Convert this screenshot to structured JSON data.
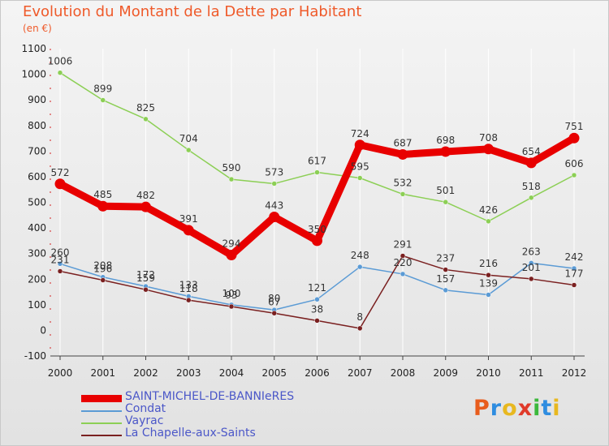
{
  "title": "Evolution du Montant de la Dette par Habitant",
  "subtitle": "(en €)",
  "logo": {
    "text": "Proxiti",
    "letter_colors": [
      "#e85c1c",
      "#2f8de0",
      "#e8b820",
      "#e03a2a",
      "#3cb83c",
      "#2f8de0",
      "#e8b820"
    ]
  },
  "chart_data": {
    "type": "line",
    "title": "Evolution du Montant de la Dette par Habitant",
    "subtitle": "(en €)",
    "xlabel": "",
    "ylabel": "",
    "x": [
      "2000",
      "2001",
      "2002",
      "2003",
      "2004",
      "2005",
      "2006",
      "2007",
      "2008",
      "2009",
      "2010",
      "2011",
      "2012"
    ],
    "ylim": [
      -100,
      1100
    ],
    "yticks": [
      "-100",
      "0",
      "100",
      "200",
      "300",
      "400",
      "500",
      "600",
      "700",
      "800",
      "900",
      "1000",
      "1100"
    ],
    "grid": "vertical",
    "legend_position": "bottom-left",
    "series": [
      {
        "name": "SAINT-MICHEL-DE-BANNIeRES",
        "color": "#e80000",
        "width": 9,
        "values": [
          572,
          485,
          482,
          391,
          294,
          443,
          350,
          724,
          687,
          698,
          708,
          654,
          751
        ]
      },
      {
        "name": "Condat",
        "color": "#5b9bd5",
        "width": 1.5,
        "values": [
          260,
          208,
          172,
          133,
          100,
          80,
          121,
          248,
          220,
          157,
          139,
          263,
          242
        ]
      },
      {
        "name": "Vayrac",
        "color": "#8ccf55",
        "width": 1.5,
        "values": [
          1006,
          899,
          825,
          704,
          590,
          573,
          617,
          595,
          532,
          501,
          426,
          518,
          606
        ]
      },
      {
        "name": "La Chapelle-aux-Saints",
        "color": "#7a2020",
        "width": 1.5,
        "values": [
          231,
          196,
          159,
          118,
          93,
          67,
          38,
          8,
          291,
          237,
          216,
          201,
          177
        ]
      }
    ]
  }
}
